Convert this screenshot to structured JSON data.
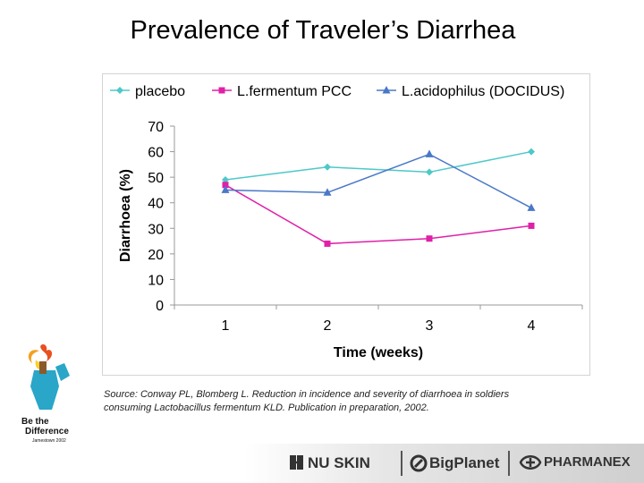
{
  "slide": {
    "title": "Prevalence of Traveler’s Diarrhea",
    "source": "Source: Conway PL, Blomberg L. Reduction in incidence and severity of diarrhoea in soldiers consuming Lactobacillus fermentum KLD. Publication in preparation, 2002."
  },
  "logo": {
    "line1": "Be the",
    "line2": "Difference",
    "line3": "Jamestown 2002"
  },
  "footer": {
    "brands": [
      "NU SKIN",
      "BigPlanet",
      "PHARMANEX"
    ]
  },
  "chart_data": {
    "type": "line",
    "title": "",
    "xlabel": "Time (weeks)",
    "ylabel": "Diarrhoea (%)",
    "categories": [
      "1",
      "2",
      "3",
      "4"
    ],
    "ylim": [
      0,
      70
    ],
    "yticks": [
      0,
      10,
      20,
      30,
      40,
      50,
      60,
      70
    ],
    "grid": false,
    "legend_position": "top",
    "series": [
      {
        "name": "placebo",
        "values": [
          49,
          54,
          52,
          60
        ],
        "color": "#4ec8c8",
        "marker": "diamond"
      },
      {
        "name": "L.fermentum PCC",
        "values": [
          47,
          24,
          26,
          31
        ],
        "color": "#e020a8",
        "marker": "square"
      },
      {
        "name": "L.acidophilus (DOCIDUS)",
        "values": [
          45,
          44,
          59,
          38
        ],
        "color": "#4a78c8",
        "marker": "triangle"
      }
    ]
  }
}
